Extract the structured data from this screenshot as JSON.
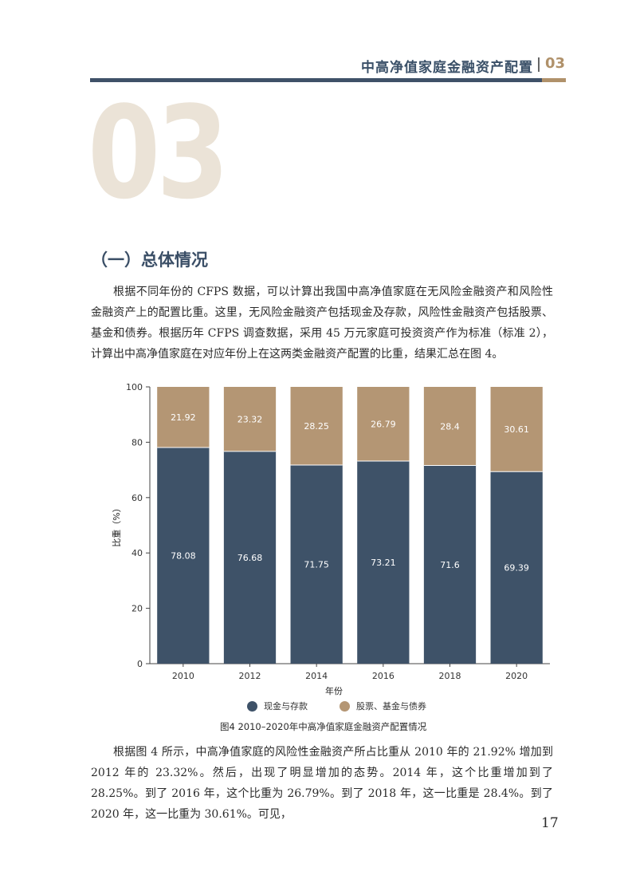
{
  "header": {
    "title": "中高净值家庭金融资产配置",
    "chapter_num": "03"
  },
  "big_chapter_num": "03",
  "section_title": "（一）总体情况",
  "paragraphs": {
    "p1": "根据不同年份的 CFPS 数据，可以计算出我国中高净值家庭在无风险金融资产和风险性金融资产上的配置比重。这里，无风险金融资产包括现金及存款，风险性金融资产包括股票、基金和债券。根据历年 CFPS 调查数据，采用 45 万元家庭可投资资产作为标准（标准 2），计算出中高净值家庭在对应年份上在这两类金融资产配置的比重，结果汇总在图 4。",
    "p2": "根据图 4 所示，中高净值家庭的风险性金融资产所占比重从 2010 年的 21.92% 增加到 2012 年的 23.32%。然后，出现了明显增加的态势。2014 年，这个比重增加到了 28.25%。到了 2016 年，这个比重为 26.79%。到了 2018 年，这一比重是 28.4%。到了 2020 年，这一比重为 30.61%。可见，"
  },
  "chart_data": {
    "type": "bar",
    "stacked": true,
    "categories": [
      "2010",
      "2012",
      "2014",
      "2016",
      "2018",
      "2020"
    ],
    "series": [
      {
        "name": "现金与存款",
        "values": [
          78.08,
          76.68,
          71.75,
          73.21,
          71.6,
          69.39
        ],
        "color": "#3e5268"
      },
      {
        "name": "股票、基金与债券",
        "values": [
          21.92,
          23.32,
          28.25,
          26.79,
          28.4,
          30.61
        ],
        "color": "#b49674"
      }
    ],
    "data_labels": {
      "bottom": [
        "78.08",
        "76.68",
        "71.75",
        "73.21",
        "71.6",
        "69.39"
      ],
      "top": [
        "21.92",
        "23.32",
        "28.25",
        "26.79",
        "28.4",
        "30.61"
      ]
    },
    "ylim": [
      0,
      100
    ],
    "yticks": [
      "0",
      "20",
      "40",
      "60",
      "80",
      "100"
    ],
    "xlabel": "年份",
    "ylabel": "比重（%）",
    "legend_position": "bottom",
    "grid": false,
    "caption": "图4   2010–2020年中高净值家庭金融资产配置情况"
  },
  "page_number": "17"
}
